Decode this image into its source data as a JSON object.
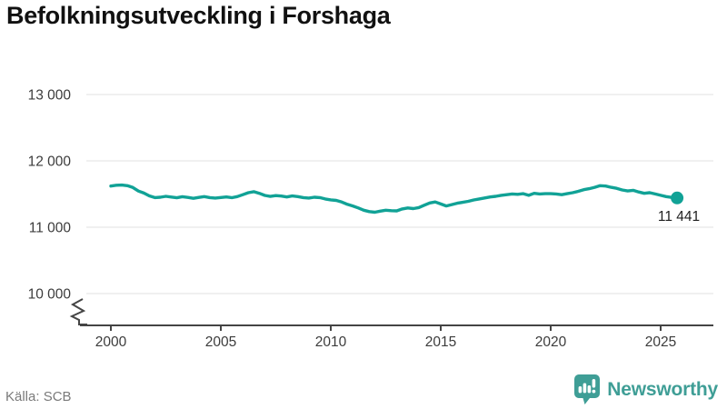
{
  "title": "Befolkningsutveckling i Forshaga",
  "source": {
    "label": "Källa: SCB"
  },
  "branding": {
    "name": "Newsworthy",
    "icon": "newsworthy-speech-bubble-bar-chart-icon"
  },
  "colors": {
    "line": "#11A296",
    "brand": "#3F9E96",
    "axis": "#444444",
    "grid": "#E2E2E2",
    "tick_text": "#3C3C3C",
    "title_text": "#111111",
    "source_text": "#7A7A7A"
  },
  "chart_data": {
    "type": "line",
    "title": "Befolkningsutveckling i Forshaga",
    "xlabel": "",
    "ylabel": "",
    "grid": "horizontal",
    "axis_break": true,
    "legend": "none",
    "x_ticks": [
      2000,
      2005,
      2010,
      2015,
      2020,
      2025
    ],
    "y_ticks": [
      13000,
      12000,
      11000,
      10000
    ],
    "y_tick_labels": [
      "13 000",
      "12 000",
      "11 000",
      "10 000"
    ],
    "xlim": [
      1998.6,
      2027.4
    ],
    "ylim_display": [
      9500,
      13000
    ],
    "x": [
      2000,
      2000.25,
      2000.5,
      2000.75,
      2001,
      2001.25,
      2001.5,
      2001.75,
      2002,
      2002.25,
      2002.5,
      2002.75,
      2003,
      2003.25,
      2003.5,
      2003.75,
      2004,
      2004.25,
      2004.5,
      2004.75,
      2005,
      2005.25,
      2005.5,
      2005.75,
      2006,
      2006.25,
      2006.5,
      2006.75,
      2007,
      2007.25,
      2007.5,
      2007.75,
      2008,
      2008.25,
      2008.5,
      2008.75,
      2009,
      2009.25,
      2009.5,
      2009.75,
      2010,
      2010.25,
      2010.5,
      2010.75,
      2011,
      2011.25,
      2011.5,
      2011.75,
      2012,
      2012.25,
      2012.5,
      2012.75,
      2013,
      2013.25,
      2013.5,
      2013.75,
      2014,
      2014.25,
      2014.5,
      2014.75,
      2015,
      2015.25,
      2015.5,
      2015.75,
      2016,
      2016.25,
      2016.5,
      2016.75,
      2017,
      2017.25,
      2017.5,
      2017.75,
      2018,
      2018.25,
      2018.5,
      2018.75,
      2019,
      2019.25,
      2019.5,
      2019.75,
      2020,
      2020.25,
      2020.5,
      2020.75,
      2021,
      2021.25,
      2021.5,
      2021.75,
      2022,
      2022.25,
      2022.5,
      2022.75,
      2023,
      2023.25,
      2023.5,
      2023.75,
      2024,
      2024.25,
      2024.5,
      2024.75,
      2025,
      2025.25,
      2025.5,
      2025.75
    ],
    "series": [
      {
        "name": "Befolkning",
        "values": [
          11620,
          11633,
          11636,
          11626,
          11598,
          11545,
          11515,
          11472,
          11446,
          11452,
          11466,
          11455,
          11444,
          11460,
          11450,
          11436,
          11450,
          11461,
          11446,
          11440,
          11448,
          11456,
          11445,
          11462,
          11490,
          11521,
          11535,
          11511,
          11480,
          11465,
          11477,
          11470,
          11456,
          11471,
          11461,
          11446,
          11440,
          11452,
          11446,
          11426,
          11412,
          11404,
          11380,
          11345,
          11320,
          11290,
          11256,
          11236,
          11226,
          11242,
          11256,
          11250,
          11246,
          11276,
          11291,
          11281,
          11296,
          11331,
          11366,
          11381,
          11351,
          11321,
          11341,
          11361,
          11376,
          11391,
          11411,
          11426,
          11441,
          11456,
          11466,
          11481,
          11491,
          11501,
          11496,
          11506,
          11481,
          11511,
          11501,
          11506,
          11506,
          11501,
          11491,
          11506,
          11521,
          11541,
          11566,
          11581,
          11601,
          11626,
          11621,
          11601,
          11586,
          11561,
          11546,
          11556,
          11531,
          11511,
          11521,
          11501,
          11481,
          11461,
          11449,
          11441
        ]
      }
    ],
    "end_point": {
      "x": 2025.75,
      "value": 11441,
      "label": "11 441"
    }
  }
}
